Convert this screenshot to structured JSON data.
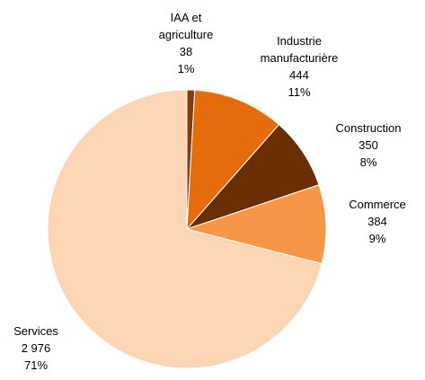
{
  "chart_data": {
    "type": "pie",
    "categories": [
      "IAA et agriculture",
      "Industrie manufacturière",
      "Construction",
      "Commerce",
      "Services"
    ],
    "values": [
      38,
      444,
      350,
      384,
      2976
    ],
    "value_labels": [
      "38",
      "444",
      "350",
      "384",
      "2 976"
    ],
    "percent_labels": [
      "1%",
      "11%",
      "8%",
      "9%",
      "71%"
    ],
    "colors": [
      "#843c0c",
      "#e46c0a",
      "#6b2d02",
      "#f79646",
      "#fcd5b5"
    ]
  }
}
